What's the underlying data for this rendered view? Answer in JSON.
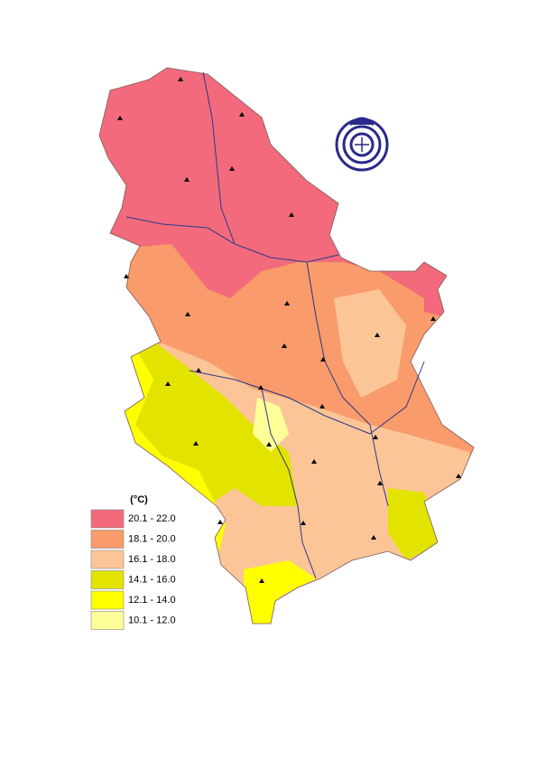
{
  "legend": {
    "title": "(°C)",
    "items": [
      {
        "label": "20.1 - 22.0",
        "color": "#f26a7b"
      },
      {
        "label": "18.1 - 20.0",
        "color": "#f99b6a"
      },
      {
        "label": "16.1 - 18.0",
        "color": "#fcc597"
      },
      {
        "label": "14.1 - 16.0",
        "color": "#e3e300"
      },
      {
        "label": "12.1 - 14.0",
        "color": "#ffff00"
      },
      {
        "label": "10.1 - 12.0",
        "color": "#ffff99"
      }
    ]
  }
}
